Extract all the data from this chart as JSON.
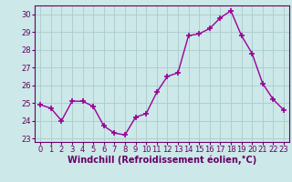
{
  "x": [
    0,
    1,
    2,
    3,
    4,
    5,
    6,
    7,
    8,
    9,
    10,
    11,
    12,
    13,
    14,
    15,
    16,
    17,
    18,
    19,
    20,
    21,
    22,
    23
  ],
  "y": [
    24.9,
    24.7,
    24.0,
    25.1,
    25.1,
    24.8,
    23.7,
    23.3,
    23.2,
    24.2,
    24.4,
    25.6,
    26.5,
    26.7,
    28.8,
    28.9,
    29.2,
    29.8,
    30.2,
    28.8,
    27.8,
    26.1,
    25.2,
    24.6
  ],
  "line_color": "#990099",
  "marker": "+",
  "marker_size": 4,
  "linewidth": 1.0,
  "xlabel": "Windchill (Refroidissement éolien,°C)",
  "xlabel_fontsize": 7,
  "ylim": [
    22.8,
    30.5
  ],
  "xlim": [
    -0.5,
    23.5
  ],
  "yticks": [
    23,
    24,
    25,
    26,
    27,
    28,
    29,
    30
  ],
  "xticks": [
    0,
    1,
    2,
    3,
    4,
    5,
    6,
    7,
    8,
    9,
    10,
    11,
    12,
    13,
    14,
    15,
    16,
    17,
    18,
    19,
    20,
    21,
    22,
    23
  ],
  "tick_fontsize": 6,
  "background_color": "#cce8e8",
  "grid_color": "#aacccc",
  "spine_color": "#660066",
  "xlabel_color": "#660066",
  "tick_color": "#660066"
}
